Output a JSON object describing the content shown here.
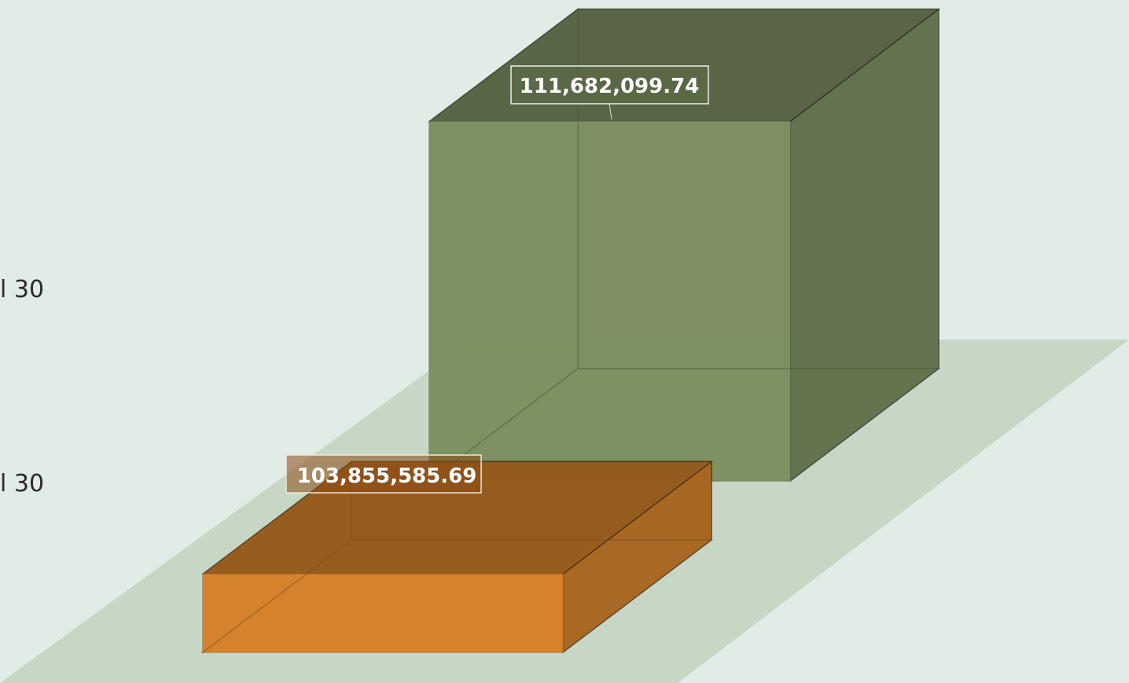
{
  "chart_data": {
    "type": "bar",
    "style": "3d-box",
    "categories": [
      "l 30",
      "l 30"
    ],
    "series": [
      {
        "values": [
          103855585.69,
          111682099.74
        ]
      }
    ],
    "data_labels": [
      "103,855,585.69",
      "111,682,099.74"
    ],
    "colors": [
      "#d8842b",
      "#7f9264"
    ],
    "floor_color": "#c8d7c5",
    "background": "#e1ece7",
    "grid": false,
    "legend": "none"
  }
}
